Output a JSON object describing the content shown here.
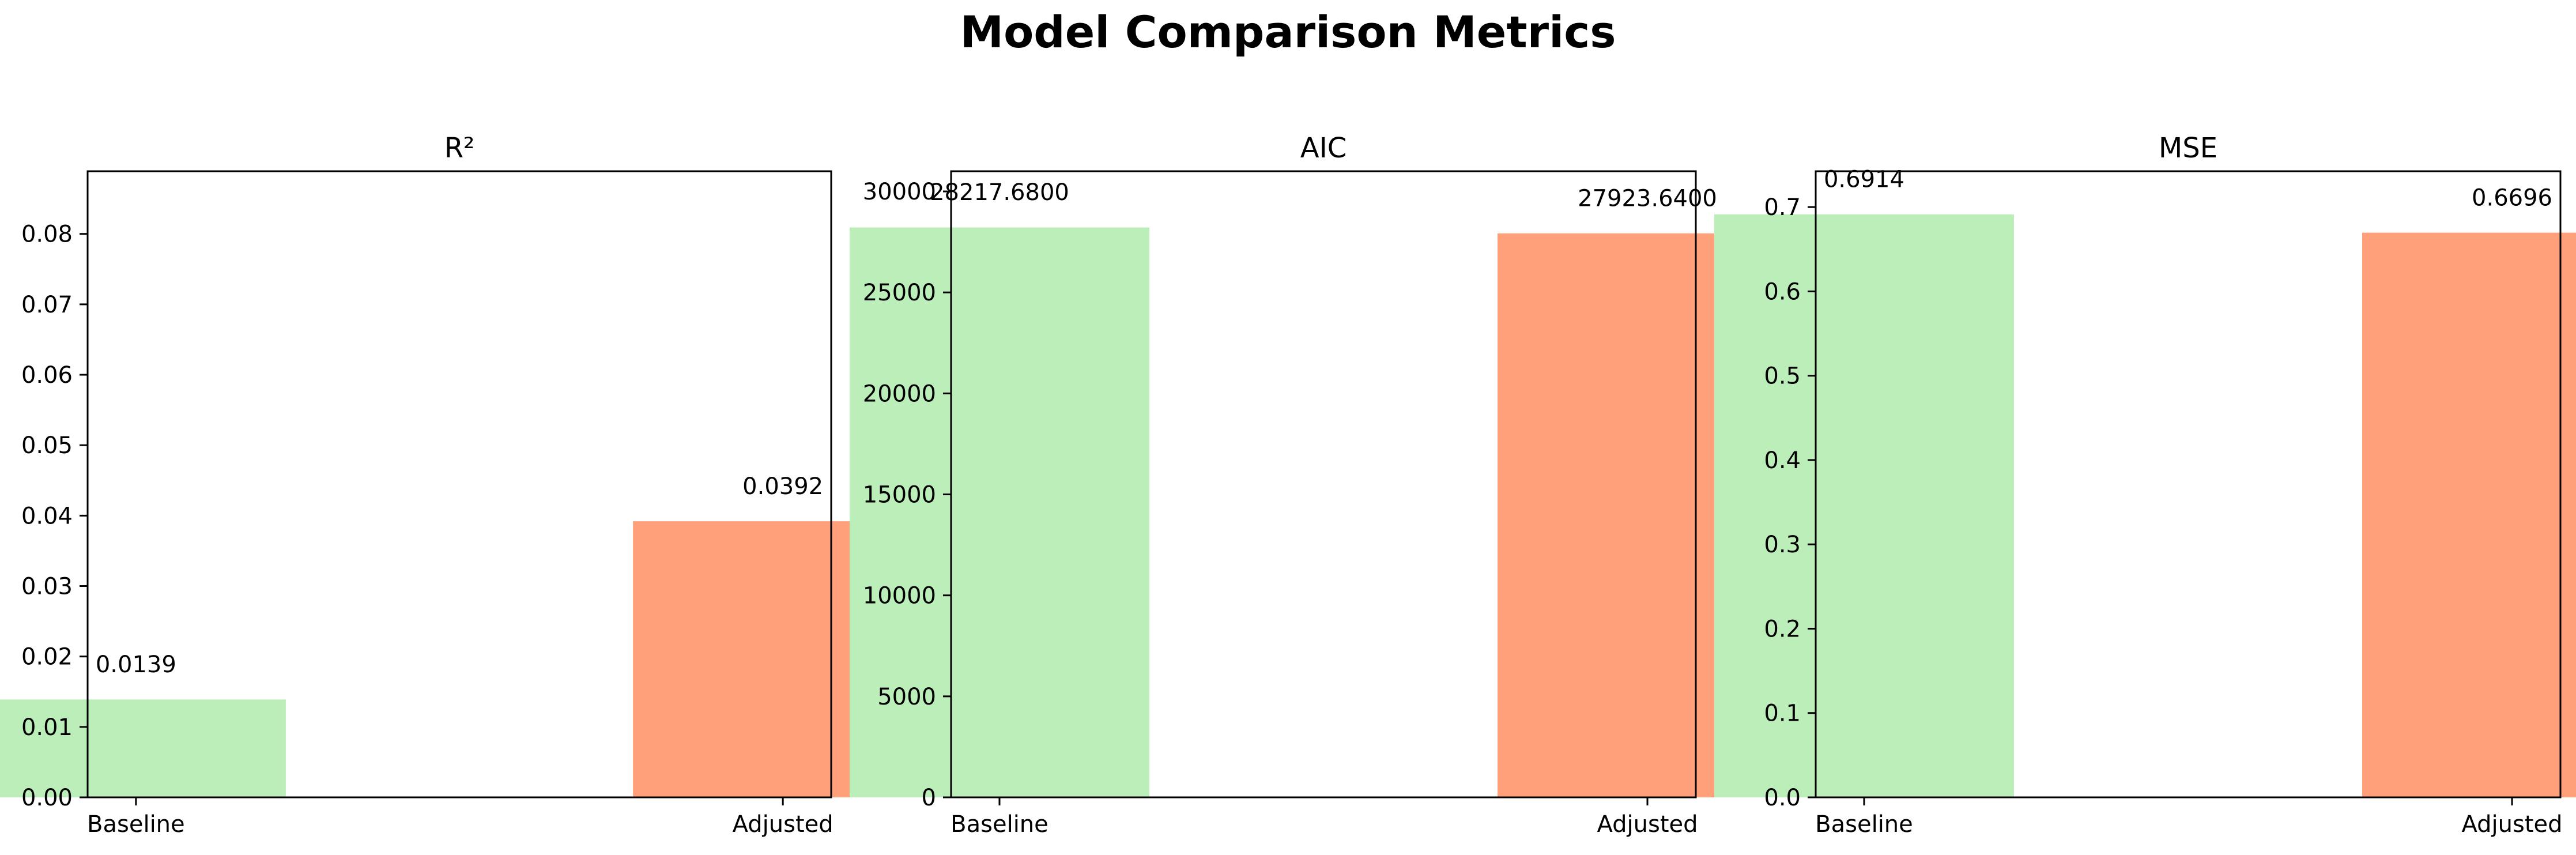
{
  "title": "Model Comparison Metrics",
  "colors": {
    "Baseline": "#bbeeb9",
    "Adjusted": "#ffa07a"
  },
  "chart_data": [
    {
      "type": "bar",
      "title": "R²",
      "categories": [
        "Baseline",
        "Adjusted"
      ],
      "values": [
        0.0139,
        0.0392
      ],
      "value_labels": [
        "0.0139",
        "0.0392"
      ],
      "ylim": [
        0,
        0.0889
      ],
      "yticks": [
        0,
        0.01,
        0.02,
        0.03,
        0.04,
        0.05,
        0.06,
        0.07,
        0.08
      ],
      "ytick_labels": [
        "0.00",
        "0.01",
        "0.02",
        "0.03",
        "0.04",
        "0.05",
        "0.06",
        "0.07",
        "0.08"
      ],
      "grid": false
    },
    {
      "type": "bar",
      "title": "AIC",
      "categories": [
        "Baseline",
        "Adjusted"
      ],
      "values": [
        28217.68,
        27923.64
      ],
      "value_labels": [
        "28217.6800",
        "27923.6400"
      ],
      "ylim": [
        0,
        31000
      ],
      "yticks": [
        0,
        5000,
        10000,
        15000,
        20000,
        25000,
        30000
      ],
      "ytick_labels": [
        "0",
        "5000",
        "10000",
        "15000",
        "20000",
        "25000",
        "30000"
      ],
      "grid": false
    },
    {
      "type": "bar",
      "title": "MSE",
      "categories": [
        "Baseline",
        "Adjusted"
      ],
      "values": [
        0.6914,
        0.6696
      ],
      "value_labels": [
        "0.6914",
        "0.6696"
      ],
      "ylim": [
        0,
        0.7425
      ],
      "yticks": [
        0,
        0.1,
        0.2,
        0.3,
        0.4,
        0.5,
        0.6,
        0.7
      ],
      "ytick_labels": [
        "0.0",
        "0.1",
        "0.2",
        "0.3",
        "0.4",
        "0.5",
        "0.6",
        "0.7"
      ],
      "grid": false
    }
  ]
}
